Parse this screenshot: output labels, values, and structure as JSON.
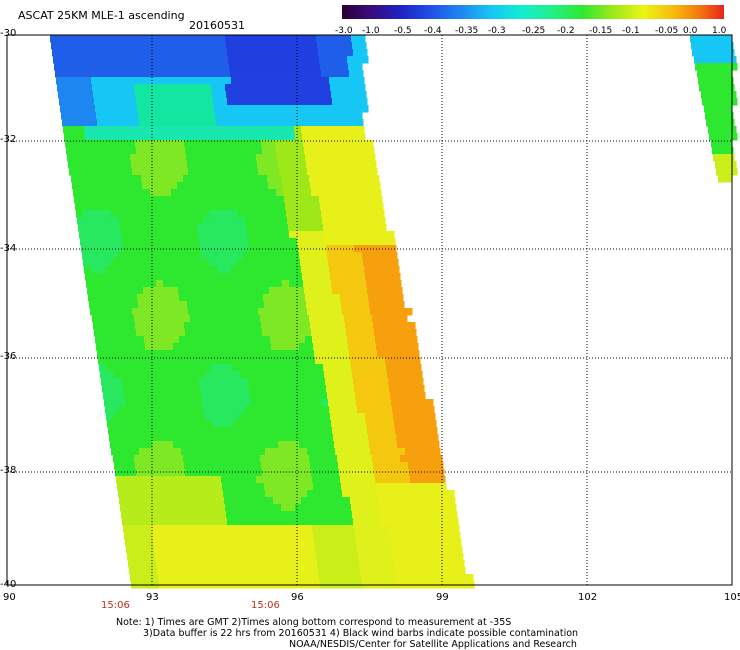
{
  "header": {
    "title": "ASCAT 25KM MLE-1 ascending",
    "date": "20160531"
  },
  "colorbar": {
    "labels": [
      "-3.0",
      "-1.0",
      "-0.5",
      "-0.4",
      "-0.35",
      "-0.3",
      "-0.25",
      "-0.2",
      "-0.15",
      "-0.1",
      "-0.05",
      "0.0",
      "1.0"
    ],
    "colors": [
      "#2a0030",
      "#3a0a7a",
      "#2020c0",
      "#1f4fe8",
      "#1e86f0",
      "#16c6f5",
      "#13ecd2",
      "#25ef8a",
      "#2ee830",
      "#9ee81a",
      "#eaf514",
      "#f7b90e",
      "#f3730e",
      "#e8231a"
    ]
  },
  "axes": {
    "lat_labels": [
      "-30",
      "-32",
      "-34",
      "-36",
      "-38",
      "-40"
    ],
    "lon_labels": [
      "90",
      "93",
      "96",
      "99",
      "102",
      "105"
    ],
    "time_labels": [
      "15:06",
      "15:06"
    ]
  },
  "notes": {
    "line1": "Note: 1) Times are GMT 2)Times along bottom correspond to measurement at -35S",
    "line2": "3)Data buffer is 22 hrs from 20160531 4) Black wind barbs indicate possible contamination",
    "line3": "NOAA/NESDIS/Center for Satellite Applications and Research"
  }
}
